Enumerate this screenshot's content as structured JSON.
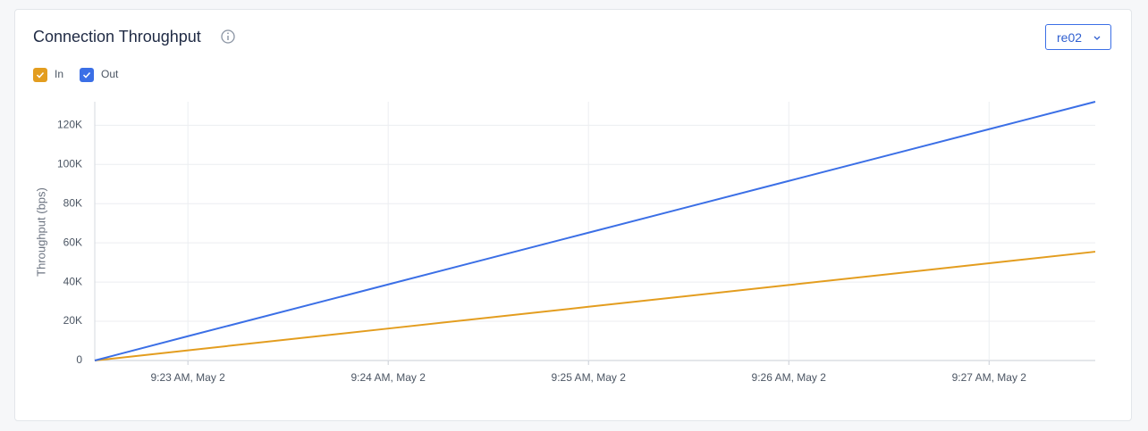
{
  "header": {
    "title": "Connection Throughput"
  },
  "controls": {
    "selector": "re02"
  },
  "chart_data": {
    "type": "line",
    "y_label": "Throughput (bps)",
    "x": [
      22.535,
      23,
      24,
      25,
      26,
      27,
      27.53
    ],
    "xlim": [
      22.535,
      27.53
    ],
    "xticks": [
      {
        "value": 23,
        "label": "9:23 AM, May 2"
      },
      {
        "value": 24,
        "label": "9:24 AM, May 2"
      },
      {
        "value": 25,
        "label": "9:25 AM, May 2"
      },
      {
        "value": 26,
        "label": "9:26 AM, May 2"
      },
      {
        "value": 27,
        "label": "9:27 AM, May 2"
      }
    ],
    "ylim": [
      0,
      132000
    ],
    "yticks": [
      0,
      {
        "value": 20000,
        "label": "20K"
      },
      {
        "value": 40000,
        "label": "40K"
      },
      {
        "value": 60000,
        "label": "60K"
      },
      {
        "value": 80000,
        "label": "80K"
      },
      {
        "value": 100000,
        "label": "100K"
      },
      {
        "value": 120000,
        "label": "120K"
      }
    ],
    "grid": true,
    "series": [
      {
        "name": "In",
        "color": "#e39d1f",
        "values": [
          0,
          5200,
          16300,
          27400,
          38500,
          49600,
          55500
        ]
      },
      {
        "name": "Out",
        "color": "#3b6fe6",
        "values": [
          0,
          12400,
          38800,
          65200,
          91600,
          118000,
          132000
        ]
      }
    ]
  }
}
